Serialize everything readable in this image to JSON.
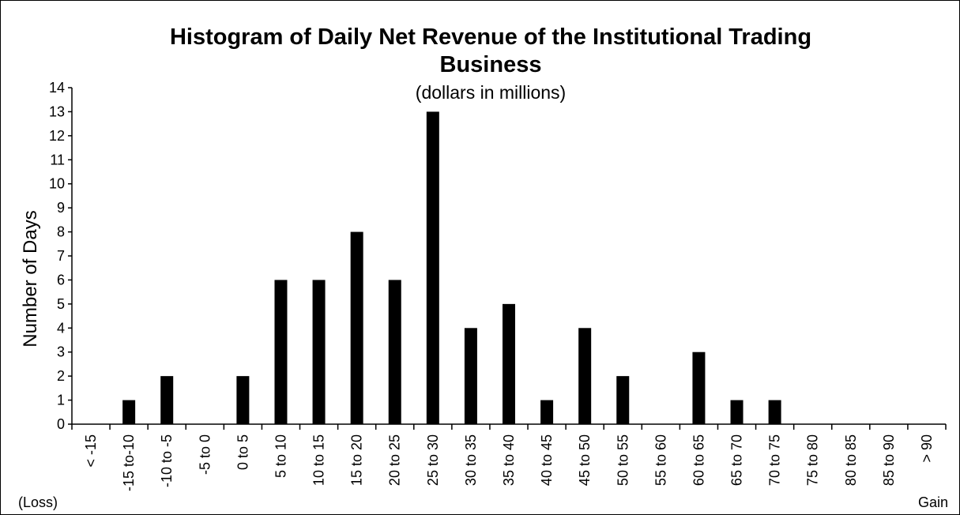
{
  "chart_data": {
    "type": "bar",
    "title_lines": [
      "Histogram of Daily Net Revenue of the Institutional Trading",
      "Business"
    ],
    "subtitle": "(dollars in millions)",
    "ylabel": "Number of Days",
    "xlabel": "",
    "ylim": [
      0,
      14
    ],
    "yticks": [
      0,
      1,
      2,
      3,
      4,
      5,
      6,
      7,
      8,
      9,
      10,
      11,
      12,
      13,
      14
    ],
    "categories": [
      "< -15",
      "-15 to-10",
      "-10 to -5",
      "-5 to 0",
      "0 to 5",
      "5 to 10",
      "10 to 15",
      "15 to 20",
      "20 to 25",
      "25 to 30",
      "30 to 35",
      "35 to 40",
      "40 to 45",
      "45 to 50",
      "50 to 55",
      "55 to 60",
      "60 to 65",
      "65 to 70",
      "70 to 75",
      "75 to 80",
      "80 to 85",
      "85 to 90",
      "> 90"
    ],
    "values": [
      0,
      1,
      2,
      0,
      2,
      6,
      6,
      8,
      6,
      13,
      4,
      5,
      1,
      4,
      2,
      0,
      3,
      1,
      1,
      0,
      0,
      0,
      0
    ],
    "bar_color": "#000000",
    "grid": false,
    "legend": "none",
    "left_note": "(Loss)",
    "right_note": "Gain"
  }
}
